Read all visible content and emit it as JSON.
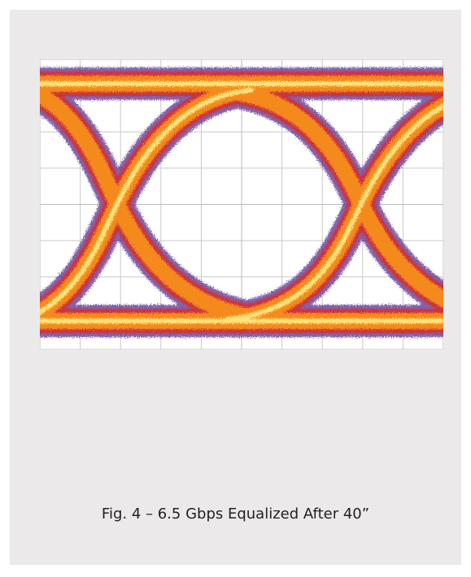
{
  "caption": "Fig. 4 – 6.5 Gbps Equalized After 40”"
}
